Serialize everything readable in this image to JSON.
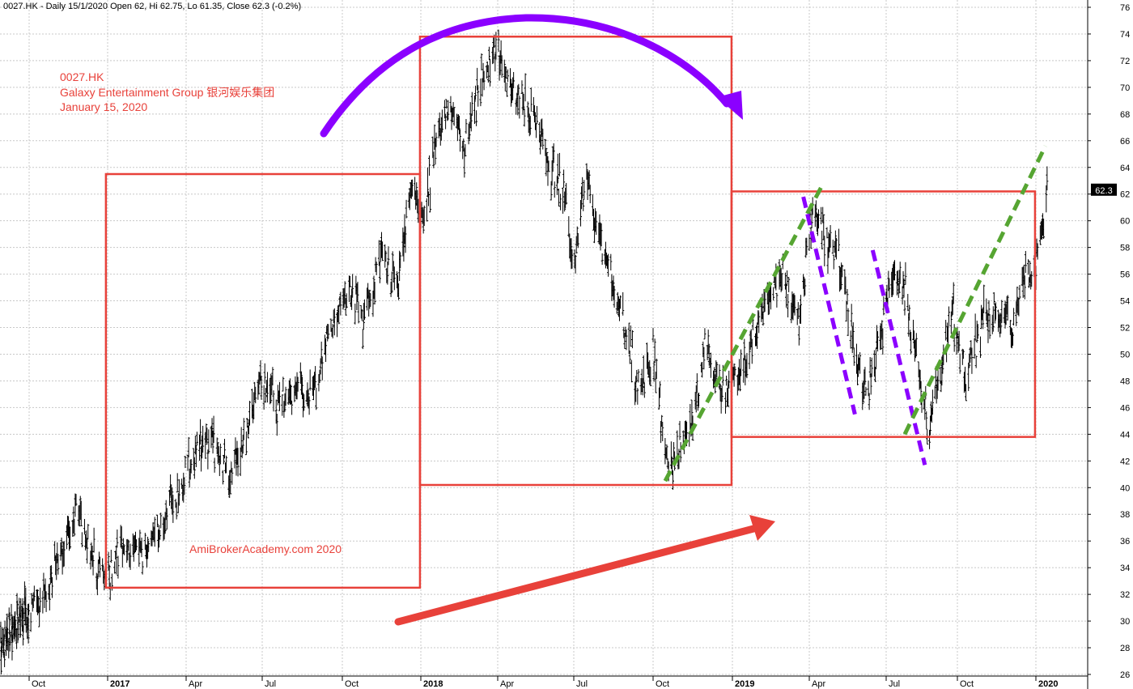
{
  "header": {
    "text": "0027.HK - Daily 15/1/2020 Open 62, Hi 62.75, Lo 61.35, Close 62.3 (-0.2%)"
  },
  "chart_data": {
    "type": "ohlc",
    "symbol": "0027.HK",
    "ylim": [
      26,
      76
    ],
    "y_ticks": [
      26,
      28,
      30,
      32,
      34,
      36,
      38,
      40,
      42,
      44,
      46,
      48,
      50,
      52,
      54,
      56,
      58,
      60,
      62,
      64,
      66,
      68,
      70,
      72,
      74,
      76
    ],
    "x_ticks": [
      {
        "label": "Oct",
        "date": "2016-10-01",
        "bold": false
      },
      {
        "label": "2017",
        "date": "2017-01-01",
        "bold": true
      },
      {
        "label": "Apr",
        "date": "2017-04-01",
        "bold": false
      },
      {
        "label": "Jul",
        "date": "2017-07-01",
        "bold": false
      },
      {
        "label": "Oct",
        "date": "2017-10-01",
        "bold": false
      },
      {
        "label": "2018",
        "date": "2018-01-01",
        "bold": true
      },
      {
        "label": "Apr",
        "date": "2018-04-01",
        "bold": false
      },
      {
        "label": "Jul",
        "date": "2018-07-01",
        "bold": false
      },
      {
        "label": "Oct",
        "date": "2018-10-01",
        "bold": false
      },
      {
        "label": "2019",
        "date": "2019-01-01",
        "bold": true
      },
      {
        "label": "Apr",
        "date": "2019-04-01",
        "bold": false
      },
      {
        "label": "Jul",
        "date": "2019-07-01",
        "bold": false
      },
      {
        "label": "Oct",
        "date": "2019-10-01",
        "bold": false
      },
      {
        "label": "2020",
        "date": "2020-01-01",
        "bold": true
      }
    ],
    "price_path": [
      {
        "date": "2016-07-15",
        "close": 27.5
      },
      {
        "date": "2016-08-15",
        "close": 29.5
      },
      {
        "date": "2016-09-15",
        "close": 30.5
      },
      {
        "date": "2016-10-15",
        "close": 31.5
      },
      {
        "date": "2016-11-01",
        "close": 34.0
      },
      {
        "date": "2016-11-25",
        "close": 38.0
      },
      {
        "date": "2016-12-10",
        "close": 36.0
      },
      {
        "date": "2016-12-30",
        "close": 33.0
      },
      {
        "date": "2017-01-20",
        "close": 35.5
      },
      {
        "date": "2017-02-15",
        "close": 35.0
      },
      {
        "date": "2017-03-01",
        "close": 37.5
      },
      {
        "date": "2017-03-20",
        "close": 39.5
      },
      {
        "date": "2017-04-15",
        "close": 43.0
      },
      {
        "date": "2017-05-05",
        "close": 43.5
      },
      {
        "date": "2017-05-25",
        "close": 40.5
      },
      {
        "date": "2017-06-15",
        "close": 45.0
      },
      {
        "date": "2017-07-01",
        "close": 48.5
      },
      {
        "date": "2017-07-20",
        "close": 46.0
      },
      {
        "date": "2017-08-10",
        "close": 47.5
      },
      {
        "date": "2017-08-30",
        "close": 47.0
      },
      {
        "date": "2017-09-20",
        "close": 52.0
      },
      {
        "date": "2017-10-10",
        "close": 55.0
      },
      {
        "date": "2017-10-25",
        "close": 52.0
      },
      {
        "date": "2017-11-15",
        "close": 57.0
      },
      {
        "date": "2017-12-05",
        "close": 55.0
      },
      {
        "date": "2017-12-20",
        "close": 62.5
      },
      {
        "date": "2018-01-05",
        "close": 60.0
      },
      {
        "date": "2018-01-20",
        "close": 66.0
      },
      {
        "date": "2018-02-05",
        "close": 69.0
      },
      {
        "date": "2018-02-20",
        "close": 65.0
      },
      {
        "date": "2018-03-15",
        "close": 71.0
      },
      {
        "date": "2018-04-01",
        "close": 73.0
      },
      {
        "date": "2018-04-20",
        "close": 69.5
      },
      {
        "date": "2018-05-15",
        "close": 68.0
      },
      {
        "date": "2018-06-01",
        "close": 64.0
      },
      {
        "date": "2018-06-20",
        "close": 62.0
      },
      {
        "date": "2018-07-01",
        "close": 56.0
      },
      {
        "date": "2018-07-15",
        "close": 63.5
      },
      {
        "date": "2018-08-05",
        "close": 57.5
      },
      {
        "date": "2018-08-25",
        "close": 53.5
      },
      {
        "date": "2018-09-15",
        "close": 47.0
      },
      {
        "date": "2018-10-01",
        "close": 50.0
      },
      {
        "date": "2018-10-20",
        "close": 41.0
      },
      {
        "date": "2018-11-10",
        "close": 44.0
      },
      {
        "date": "2018-12-01",
        "close": 50.5
      },
      {
        "date": "2018-12-25",
        "close": 47.0
      },
      {
        "date": "2019-01-20",
        "close": 50.0
      },
      {
        "date": "2019-02-10",
        "close": 54.0
      },
      {
        "date": "2019-03-01",
        "close": 56.0
      },
      {
        "date": "2019-03-20",
        "close": 52.0
      },
      {
        "date": "2019-04-05",
        "close": 61.0
      },
      {
        "date": "2019-04-20",
        "close": 58.5
      },
      {
        "date": "2019-05-05",
        "close": 58.0
      },
      {
        "date": "2019-05-20",
        "close": 52.0
      },
      {
        "date": "2019-06-05",
        "close": 46.5
      },
      {
        "date": "2019-06-25",
        "close": 51.5
      },
      {
        "date": "2019-07-10",
        "close": 56.5
      },
      {
        "date": "2019-07-25",
        "close": 55.0
      },
      {
        "date": "2019-08-10",
        "close": 49.0
      },
      {
        "date": "2019-08-25",
        "close": 44.5
      },
      {
        "date": "2019-09-10",
        "close": 48.5
      },
      {
        "date": "2019-09-25",
        "close": 53.0
      },
      {
        "date": "2019-10-10",
        "close": 48.0
      },
      {
        "date": "2019-10-30",
        "close": 52.5
      },
      {
        "date": "2019-11-15",
        "close": 53.5
      },
      {
        "date": "2019-12-05",
        "close": 51.5
      },
      {
        "date": "2019-12-20",
        "close": 57.0
      },
      {
        "date": "2020-01-01",
        "close": 56.0
      },
      {
        "date": "2020-01-15",
        "close": 62.3
      }
    ],
    "last_close": "62.3",
    "colors": {
      "bars": "#000000",
      "grid": "#c8c8c8",
      "boxes": "#e8413a",
      "arc_arrow": "#8b00ff",
      "up_arrow": "#e8413a",
      "green_lines": "#56a532",
      "purple_lines": "#8b00ff",
      "last_label_bg": "#000000"
    },
    "annotations": {
      "title_lines": [
        "0027.HK",
        "Galaxy Entertainment Group  银河娱乐集团",
        "January 15, 2020"
      ],
      "watermark": "AmiBrokerAcademy.com   2020"
    },
    "boxes": [
      {
        "from": "2016-12-30",
        "to": "2017-12-31",
        "low": 32.5,
        "high": 63.5
      },
      {
        "from": "2017-12-31",
        "to": "2018-12-31",
        "low": 40.2,
        "high": 73.8
      },
      {
        "from": "2018-12-31",
        "to": "2019-12-31",
        "low": 43.8,
        "high": 62.2
      }
    ],
    "trendlines": [
      {
        "kind": "green",
        "from": {
          "date": "2018-10-15",
          "value": 40.5
        },
        "to": {
          "date": "2019-04-15",
          "value": 62.5
        }
      },
      {
        "kind": "purple",
        "from": {
          "date": "2019-03-25",
          "value": 61.8
        },
        "to": {
          "date": "2019-05-25",
          "value": 45.5
        }
      },
      {
        "kind": "purple",
        "from": {
          "date": "2019-06-15",
          "value": 57.8
        },
        "to": {
          "date": "2019-08-20",
          "value": 41.7
        }
      },
      {
        "kind": "green",
        "from": {
          "date": "2019-07-25",
          "value": 44.0
        },
        "to": {
          "date": "2020-01-12",
          "value": 65.6
        }
      }
    ]
  }
}
